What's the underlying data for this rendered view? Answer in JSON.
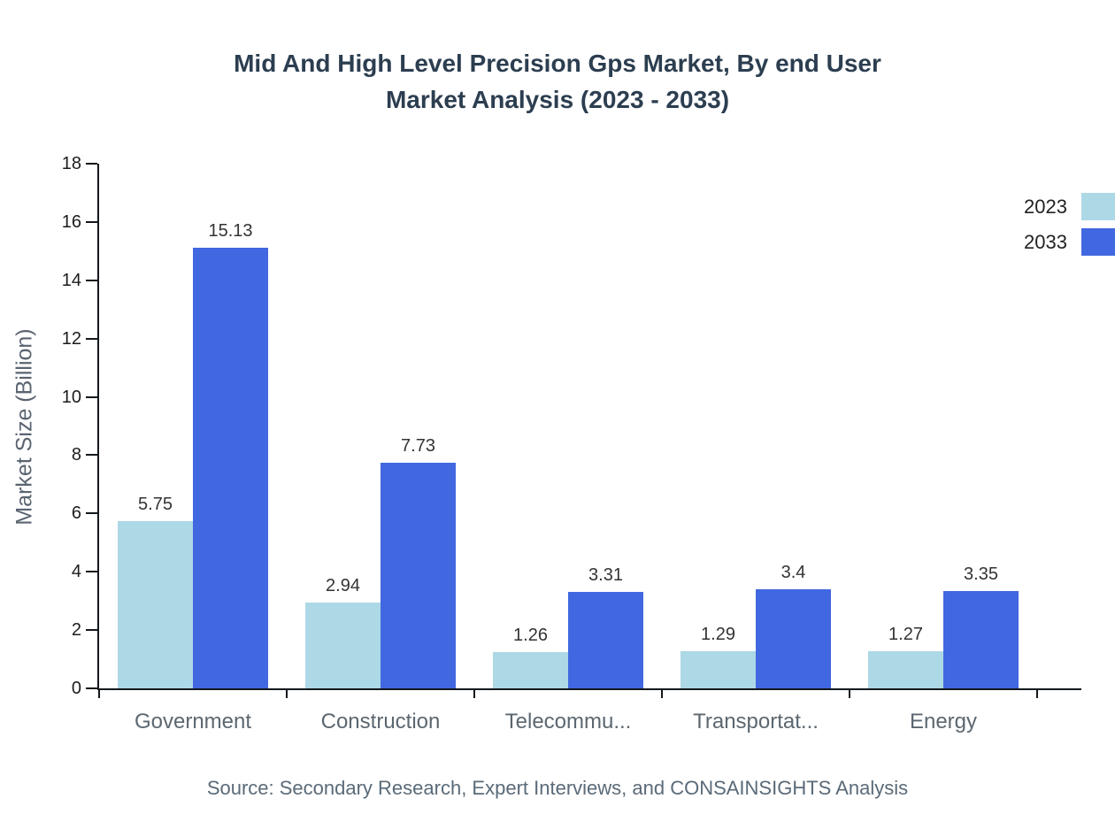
{
  "chart": {
    "title_line1": "Mid And High Level Precision Gps Market, By end User",
    "title_line2": "Market Analysis (2023 - 2033)",
    "source": "Source: Secondary Research, Expert Interviews, and CONSAINSIGHTS Analysis"
  },
  "chart_data": {
    "type": "bar",
    "title": "Mid And High Level Precision Gps Market, By end User Market Analysis (2023 - 2033)",
    "categories": [
      "Government",
      "Construction",
      "Telecommu...",
      "Transportat...",
      "Energy"
    ],
    "series": [
      {
        "name": "2023",
        "color": "#ADD8E6",
        "values": [
          5.75,
          2.94,
          1.26,
          1.29,
          1.27
        ],
        "labels": [
          "5.75",
          "2.94",
          "1.26",
          "1.29",
          "1.27"
        ]
      },
      {
        "name": "2033",
        "color": "#4168E1",
        "values": [
          15.13,
          7.73,
          3.31,
          3.4,
          3.35
        ],
        "labels": [
          "15.13",
          "7.73",
          "3.31",
          "3.4",
          "3.35"
        ]
      }
    ],
    "xlabel": "",
    "ylabel": "Market Size (Billion)",
    "ylim": [
      0,
      18
    ],
    "ytick_step": 2,
    "grid": false,
    "legend_position": "top-right"
  }
}
